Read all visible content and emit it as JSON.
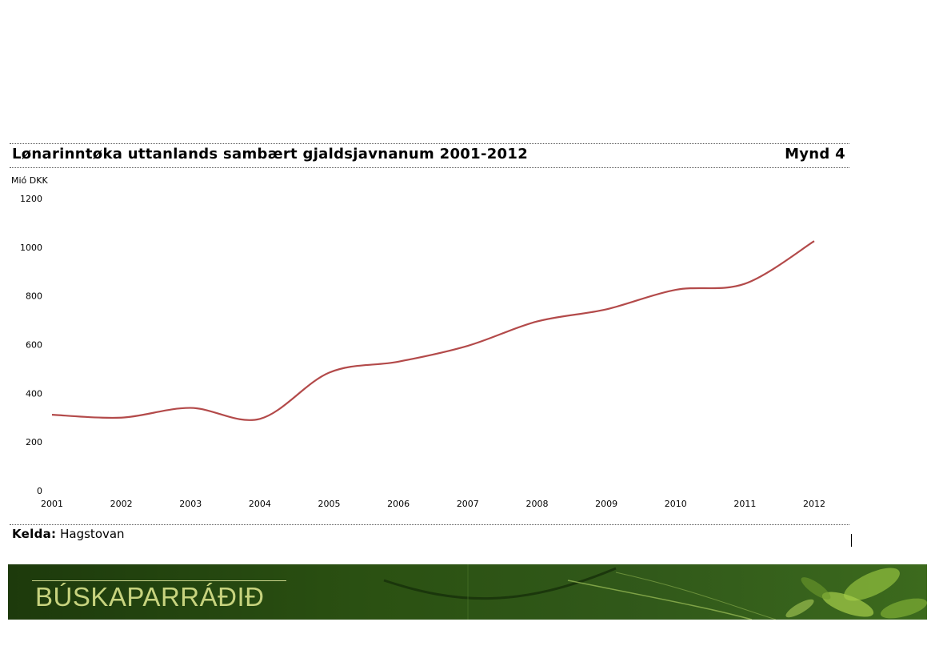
{
  "header": {
    "title": "Lønarinntøka uttanlands sambært gjaldsjavnanum 2001-2012",
    "figure_label": "Mynd 4"
  },
  "footer": {
    "source_label": "Kelda:",
    "source_value": "Hagstovan"
  },
  "banner": {
    "logo_text": "BÚSKAPARRÁÐIÐ"
  },
  "chart_data": {
    "type": "line",
    "title": "Lønarinntøka uttanlands sambært gjaldsjavnanum 2001-2012",
    "ylabel": "Mió DKK",
    "xlabel": "",
    "categories": [
      "2001",
      "2002",
      "2003",
      "2004",
      "2005",
      "2006",
      "2007",
      "2008",
      "2009",
      "2010",
      "2011",
      "2012"
    ],
    "series": [
      {
        "values": [
          312,
          300,
          340,
          295,
          485,
          530,
          595,
          695,
          745,
          825,
          850,
          1025
        ],
        "color": "#b34a4a"
      }
    ],
    "ylim": [
      0,
      1200
    ],
    "yticks": [
      0,
      200,
      400,
      600,
      800,
      1000,
      1200
    ],
    "grid": false,
    "legend": "none"
  }
}
